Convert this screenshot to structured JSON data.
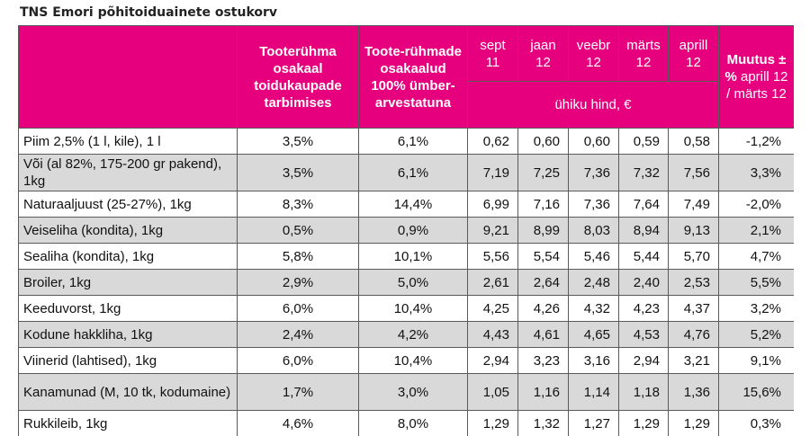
{
  "title": "TNS Emori põhitoiduainete ostukorv",
  "headers": {
    "share": "Tooterühma osakaal toidukaupade tarbimises",
    "share100": "Toote-rühmade osakaalud 100% ümber-arvestatuna",
    "months": [
      "sept 11",
      "jaan 12",
      "veebr 12",
      "märts 12",
      "aprill 12"
    ],
    "unit_price": "ühiku hind, €",
    "change_bold": "Muutus ± %",
    "change_rest": "aprill 12 / märts 12"
  },
  "rows": [
    {
      "name": "Piim 2,5% (1 l, kile), 1 l",
      "share": "3,5%",
      "share100": "6,1%",
      "prices": [
        "0,62",
        "0,60",
        "0,60",
        "0,59",
        "0,58"
      ],
      "change": "-1,2%"
    },
    {
      "name": "Või (al 82%, 175-200 gr pakend), 1kg",
      "share": "3,5%",
      "share100": "6,1%",
      "prices": [
        "7,19",
        "7,25",
        "7,36",
        "7,32",
        "7,56"
      ],
      "change": "3,3%"
    },
    {
      "name": "Naturaaljuust (25-27%), 1kg",
      "share": "8,3%",
      "share100": "14,4%",
      "prices": [
        "6,99",
        "7,16",
        "7,36",
        "7,64",
        "7,49"
      ],
      "change": "-2,0%"
    },
    {
      "name": "Veiseliha (kondita), 1kg",
      "share": "0,5%",
      "share100": "0,9%",
      "prices": [
        "9,21",
        "8,99",
        "8,03",
        "8,94",
        "9,13"
      ],
      "change": "2,1%"
    },
    {
      "name": "Sealiha (kondita), 1kg",
      "share": "5,8%",
      "share100": "10,1%",
      "prices": [
        "5,56",
        "5,54",
        "5,46",
        "5,44",
        "5,70"
      ],
      "change": "4,7%"
    },
    {
      "name": "Broiler, 1kg",
      "share": "2,9%",
      "share100": "5,0%",
      "prices": [
        "2,61",
        "2,64",
        "2,48",
        "2,40",
        "2,53"
      ],
      "change": "5,5%"
    },
    {
      "name": "Keeduvorst, 1kg",
      "share": "6,0%",
      "share100": "10,4%",
      "prices": [
        "4,25",
        "4,26",
        "4,32",
        "4,23",
        "4,37"
      ],
      "change": "3,2%"
    },
    {
      "name": "Kodune hakkliha, 1kg",
      "share": "2,4%",
      "share100": "4,2%",
      "prices": [
        "4,43",
        "4,61",
        "4,65",
        "4,53",
        "4,76"
      ],
      "change": "5,2%"
    },
    {
      "name": "Viinerid (lahtised), 1kg",
      "share": "6,0%",
      "share100": "10,4%",
      "prices": [
        "2,94",
        "3,23",
        "3,16",
        "2,94",
        "3,21"
      ],
      "change": "9,1%"
    },
    {
      "name": "Kanamunad (M, 10 tk, kodumaine)",
      "share": "1,7%",
      "share100": "3,0%",
      "prices": [
        "1,05",
        "1,16",
        "1,14",
        "1,18",
        "1,36"
      ],
      "change": "15,6%"
    },
    {
      "name": "Rukkileib, 1kg",
      "share": "4,6%",
      "share100": "8,0%",
      "prices": [
        "1,29",
        "1,32",
        "1,27",
        "1,29",
        "1,29"
      ],
      "change": "0,3%"
    }
  ],
  "colors": {
    "header_bg": "#e6007e",
    "header_text": "#ffffff",
    "row_alt": "#d9d9d9"
  }
}
